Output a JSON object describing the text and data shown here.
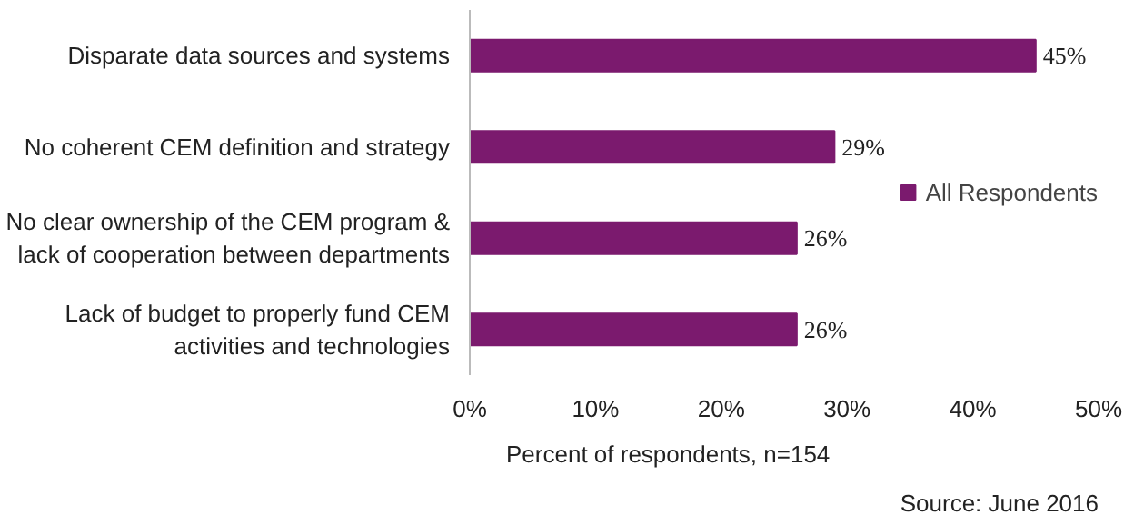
{
  "chart_data": {
    "type": "bar",
    "orientation": "horizontal",
    "categories": [
      "Disparate data sources and systems",
      "No coherent CEM definition and strategy",
      "No clear ownership of the CEM program & lack of cooperation between departments",
      "Lack of budget to properly fund CEM activities and technologies"
    ],
    "series": [
      {
        "name": "All Respondents",
        "color": "#7b1a6e",
        "values": [
          45,
          29,
          26,
          26
        ],
        "value_labels": [
          "45%",
          "29%",
          "26%",
          "26%"
        ]
      }
    ],
    "xlim": [
      0,
      50
    ],
    "xticks": [
      {
        "value": 0,
        "label": "0%"
      },
      {
        "value": 10,
        "label": "10%"
      },
      {
        "value": 20,
        "label": "20%"
      },
      {
        "value": 30,
        "label": "30%"
      },
      {
        "value": 40,
        "label": "40%"
      },
      {
        "value": 50,
        "label": "50%"
      }
    ],
    "legend": "right",
    "grid": false,
    "annotations": [
      "Percent of respondents, n=154",
      "Source: June 2016"
    ]
  }
}
